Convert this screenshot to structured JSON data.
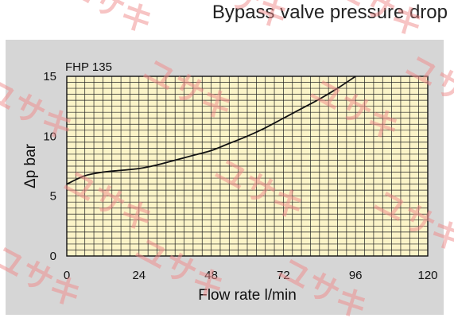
{
  "chart_data": {
    "type": "line",
    "title": "Bypass valve pressure drop",
    "subtitle": "FHP 135",
    "xlabel": "Flow rate l/min",
    "ylabel": "Δp bar",
    "xlim": [
      0,
      120
    ],
    "ylim": [
      0,
      15
    ],
    "x_ticks": [
      "0",
      "24",
      "48",
      "72",
      "96",
      "120"
    ],
    "y_ticks": [
      "0",
      "5",
      "10",
      "15"
    ],
    "grid": true,
    "series": [
      {
        "x": [
          0,
          6,
          12,
          18,
          24,
          30,
          36,
          42,
          48,
          54,
          60,
          66,
          72,
          78,
          84,
          90,
          96
        ],
        "y": [
          6.0,
          6.7,
          7.0,
          7.15,
          7.3,
          7.6,
          8.0,
          8.4,
          8.8,
          9.4,
          10.0,
          10.7,
          11.5,
          12.3,
          13.1,
          14.0,
          15.0
        ]
      }
    ]
  },
  "watermark": "ユサキ",
  "colors": {
    "plot_background": "#fbf4c8",
    "grid": "#222222",
    "line": "#111111",
    "panel": "#d6d6d6",
    "watermark": "#f08a8a"
  }
}
